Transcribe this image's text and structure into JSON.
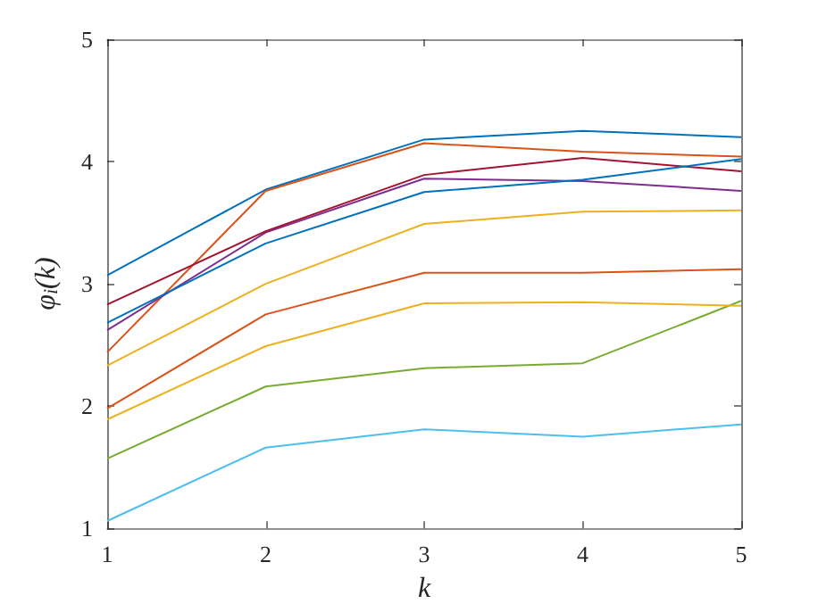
{
  "chart_data": {
    "type": "line",
    "xlabel": "k",
    "ylabel": "φ$_{i}$(k)",
    "x": [
      1,
      2,
      3,
      4,
      5
    ],
    "xlim": [
      1,
      5
    ],
    "xticks": [
      1,
      2,
      3,
      4,
      5
    ],
    "ylim": [
      1,
      5
    ],
    "yticks": [
      1,
      2,
      3,
      4,
      5
    ],
    "grid": false,
    "marker": "none",
    "line_style": "solid",
    "series": [
      {
        "color": "#0072bd",
        "values": [
          3.07,
          3.77,
          4.18,
          4.25,
          4.2
        ]
      },
      {
        "color": "#d95319",
        "values": [
          2.44,
          3.76,
          4.15,
          4.08,
          4.04
        ]
      },
      {
        "color": "#edb120",
        "values": [
          2.33,
          3.0,
          3.49,
          3.59,
          3.6
        ]
      },
      {
        "color": "#7e2f8e",
        "values": [
          2.62,
          3.42,
          3.86,
          3.84,
          3.76
        ]
      },
      {
        "color": "#77ac30",
        "values": [
          1.57,
          2.16,
          2.31,
          2.35,
          2.86
        ]
      },
      {
        "color": "#4dbeee",
        "values": [
          1.06,
          1.66,
          1.81,
          1.75,
          1.85
        ]
      },
      {
        "color": "#a2142f",
        "values": [
          2.83,
          3.43,
          3.89,
          4.03,
          3.92
        ]
      },
      {
        "color": "#0072bd",
        "values": [
          2.68,
          3.33,
          3.75,
          3.85,
          4.02
        ]
      },
      {
        "color": "#d95319",
        "values": [
          1.98,
          2.75,
          3.09,
          3.09,
          3.12
        ]
      },
      {
        "color": "#edb120",
        "values": [
          1.89,
          2.49,
          2.84,
          2.85,
          2.82
        ]
      }
    ]
  }
}
